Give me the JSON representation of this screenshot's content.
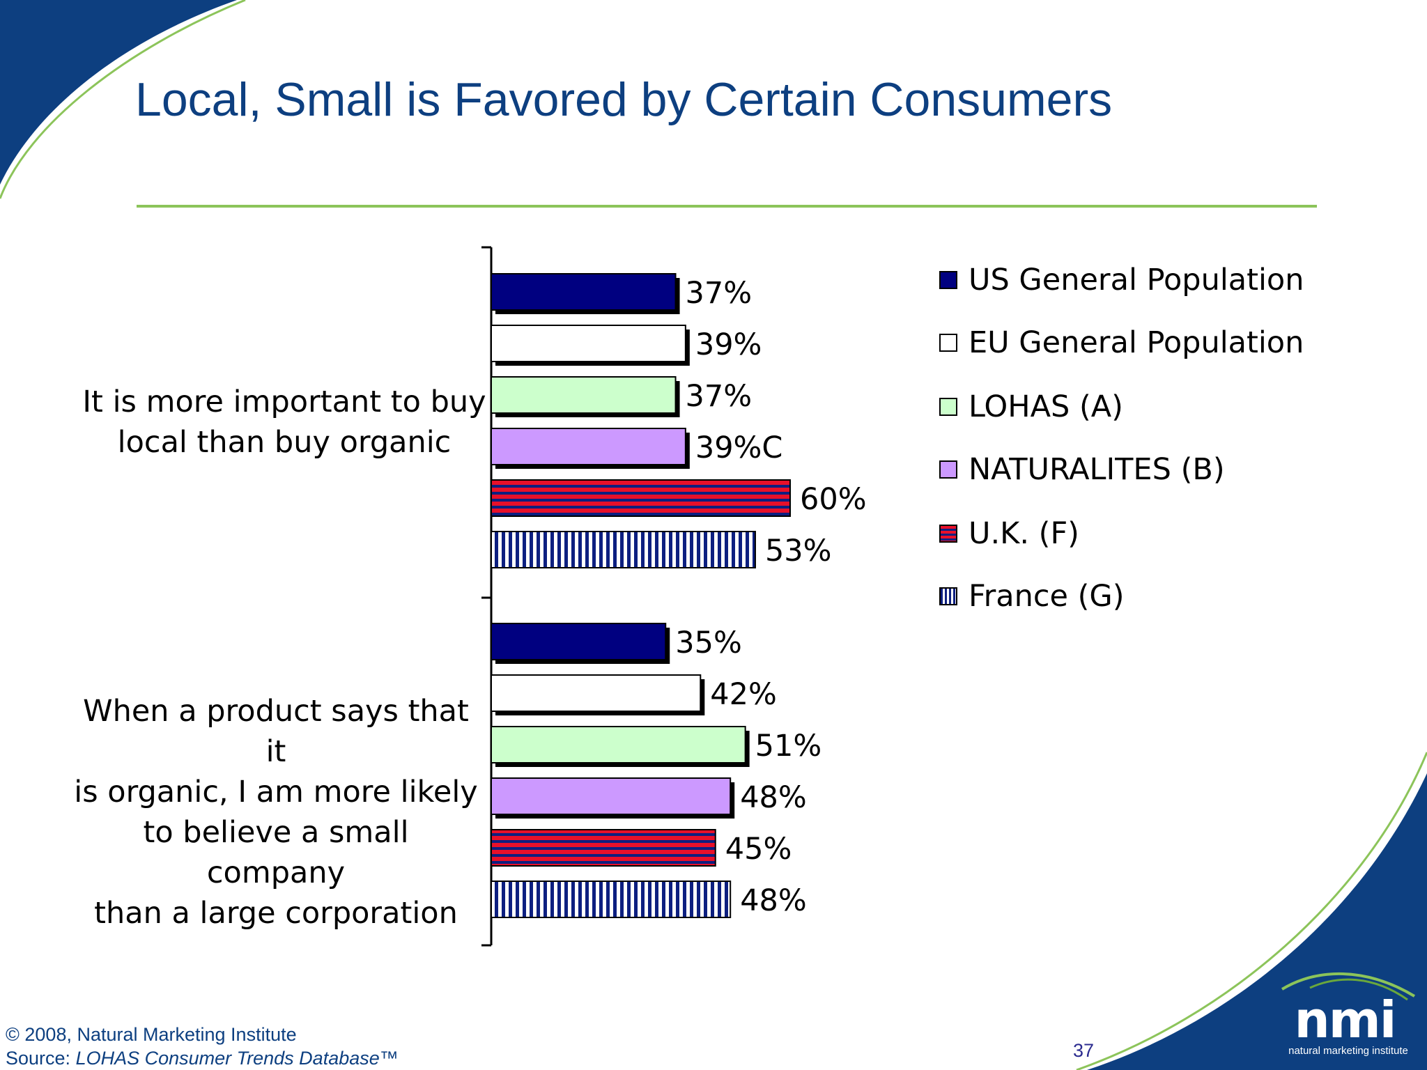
{
  "slide": {
    "title": "Local, Small is Favored by Certain Consumers",
    "footer_copyright": "© 2008, Natural Marketing Institute",
    "footer_source_label": "Source: ",
    "footer_source_name": "LOHAS Consumer Trends Database™",
    "page_number": "37",
    "logo_text": "nmi",
    "logo_subtext": "natural marketing institute"
  },
  "colors": {
    "brand_blue": "#0d3f80",
    "accent_green": "#8cc45a"
  },
  "chart_data": {
    "type": "bar",
    "orientation": "horizontal",
    "categories": [
      "It is more important to buy local than buy organic",
      "When a product says that it is organic, I am more likely to believe a small company than a large corporation"
    ],
    "category_lines": [
      [
        "It is more important to buy",
        "local than buy organic"
      ],
      [
        "When a product says that it",
        "is organic, I am more likely",
        "to believe a small company",
        "than a large corporation"
      ]
    ],
    "series": [
      {
        "name": "US General Population",
        "values": [
          37,
          35
        ],
        "labels": [
          "37%",
          "35%"
        ],
        "fill": "navy",
        "color": "#000080"
      },
      {
        "name": "EU General Population",
        "values": [
          39,
          42
        ],
        "labels": [
          "39%",
          "42%"
        ],
        "fill": "white",
        "color": "#ffffff"
      },
      {
        "name": "LOHAS (A)",
        "values": [
          37,
          51
        ],
        "labels": [
          "37%",
          "51%"
        ],
        "fill": "lightgreen",
        "color": "#ccffcc"
      },
      {
        "name": "NATURALITES (B)",
        "values": [
          39,
          48
        ],
        "labels": [
          "39%C",
          "48%"
        ],
        "fill": "lavender",
        "color": "#cc99ff"
      },
      {
        "name": "U.K. (F)",
        "values": [
          60,
          45
        ],
        "labels": [
          "60%",
          "45%"
        ],
        "fill": "red-horizontal-stripes",
        "color": "#e8102a"
      },
      {
        "name": "France (G)",
        "values": [
          53,
          48
        ],
        "labels": [
          "53%",
          "48%"
        ],
        "fill": "navy-vertical-stripes",
        "color": "#000080"
      }
    ],
    "xlim": [
      0,
      100
    ],
    "axis": "hidden",
    "gridlines": false,
    "legend_position": "right"
  }
}
